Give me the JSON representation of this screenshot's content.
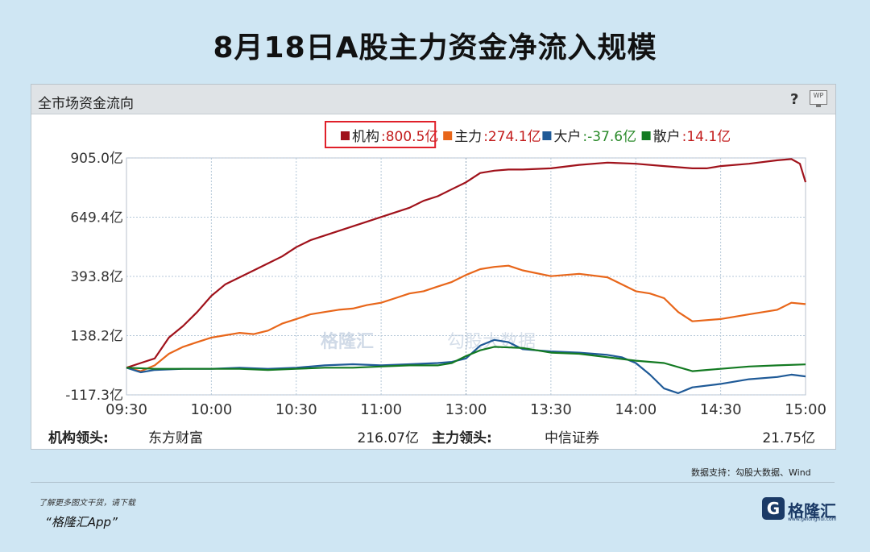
{
  "headline": "8月18日A股主力资金净流入规模",
  "panel": {
    "title": "全市场资金流向",
    "help": "?",
    "wp": "WP"
  },
  "watermark": {
    "brand": "格隆汇",
    "data": "勾股大数据"
  },
  "legend": [
    {
      "name": "机构",
      "value": ":800.5亿",
      "color": "#a0121b",
      "value_color": "#c31d1d",
      "highlight": true
    },
    {
      "name": "主力",
      "value": ":274.1亿",
      "color": "#e8661a",
      "value_color": "#c31d1d"
    },
    {
      "name": "大户",
      "value": ":-37.6亿",
      "color": "#1f5a97",
      "value_color": "#2a8a2a"
    },
    {
      "name": "散户",
      "value": ":14.1亿",
      "color": "#137a22",
      "value_color": "#c31d1d"
    }
  ],
  "footer_row": {
    "inst_label": "机构领头:",
    "inst_stock": "东方财富",
    "inst_value": "216.07亿",
    "main_label": "主力领头:",
    "main_stock": "中信证券",
    "main_value": "21.75亿"
  },
  "chart_data": {
    "type": "line",
    "title": "全市场资金流向",
    "y_ticks": [
      "905.0亿",
      "649.4亿",
      "393.8亿",
      "138.2亿",
      "-117.3亿"
    ],
    "y_tick_values": [
      905.0,
      649.4,
      393.8,
      138.2,
      -117.3
    ],
    "ylim": [
      -117.3,
      905.0
    ],
    "x_ticks": [
      "09:30",
      "10:00",
      "10:30",
      "11:00",
      "13:00",
      "13:30",
      "14:00",
      "14:30",
      "15:00"
    ],
    "x_tick_minutes": [
      0,
      30,
      60,
      90,
      120,
      150,
      180,
      210,
      240
    ],
    "xlim": [
      0,
      240
    ],
    "grid": true,
    "legend_position": "top-right",
    "series": [
      {
        "name": "机构",
        "color": "#a0121b",
        "x": [
          0,
          5,
          10,
          15,
          20,
          25,
          30,
          35,
          40,
          45,
          50,
          55,
          60,
          65,
          70,
          75,
          80,
          85,
          90,
          95,
          100,
          105,
          110,
          115,
          120,
          125,
          130,
          135,
          140,
          150,
          160,
          170,
          180,
          190,
          200,
          205,
          210,
          220,
          230,
          235,
          238,
          240
        ],
        "y": [
          0,
          20,
          40,
          130,
          180,
          240,
          310,
          360,
          390,
          420,
          450,
          480,
          520,
          550,
          570,
          590,
          610,
          630,
          650,
          670,
          690,
          720,
          740,
          770,
          800,
          840,
          850,
          855,
          855,
          860,
          875,
          885,
          880,
          870,
          860,
          860,
          870,
          880,
          895,
          900,
          880,
          800.5
        ]
      },
      {
        "name": "主力",
        "color": "#e8661a",
        "x": [
          0,
          5,
          10,
          15,
          20,
          25,
          30,
          35,
          40,
          45,
          50,
          55,
          60,
          65,
          70,
          75,
          80,
          85,
          90,
          95,
          100,
          105,
          110,
          115,
          120,
          125,
          130,
          135,
          140,
          150,
          160,
          170,
          180,
          185,
          190,
          195,
          200,
          210,
          220,
          230,
          235,
          240
        ],
        "y": [
          0,
          -15,
          10,
          60,
          90,
          110,
          130,
          140,
          150,
          145,
          160,
          190,
          210,
          230,
          240,
          250,
          255,
          270,
          280,
          300,
          320,
          330,
          350,
          370,
          400,
          425,
          435,
          440,
          420,
          395,
          405,
          390,
          330,
          320,
          300,
          240,
          200,
          210,
          230,
          250,
          280,
          274.1
        ]
      },
      {
        "name": "大户",
        "color": "#1f5a97",
        "x": [
          0,
          5,
          10,
          20,
          30,
          40,
          50,
          60,
          70,
          80,
          90,
          100,
          110,
          115,
          120,
          125,
          130,
          135,
          140,
          150,
          160,
          170,
          175,
          180,
          185,
          190,
          195,
          200,
          210,
          220,
          230,
          235,
          240
        ],
        "y": [
          0,
          -20,
          -10,
          -5,
          -5,
          0,
          -5,
          0,
          10,
          15,
          10,
          15,
          20,
          25,
          40,
          95,
          120,
          110,
          80,
          70,
          65,
          55,
          45,
          20,
          -30,
          -90,
          -110,
          -85,
          -70,
          -50,
          -40,
          -30,
          -37.6
        ]
      },
      {
        "name": "散户",
        "color": "#137a22",
        "x": [
          0,
          10,
          20,
          30,
          40,
          50,
          60,
          70,
          80,
          90,
          100,
          110,
          115,
          120,
          125,
          130,
          140,
          150,
          160,
          170,
          180,
          190,
          200,
          205,
          210,
          220,
          230,
          240
        ],
        "y": [
          0,
          -5,
          -5,
          -5,
          -5,
          -10,
          -5,
          0,
          0,
          5,
          10,
          10,
          20,
          50,
          75,
          90,
          85,
          65,
          60,
          45,
          30,
          20,
          -15,
          -10,
          -5,
          5,
          10,
          14.1
        ]
      }
    ]
  }
}
